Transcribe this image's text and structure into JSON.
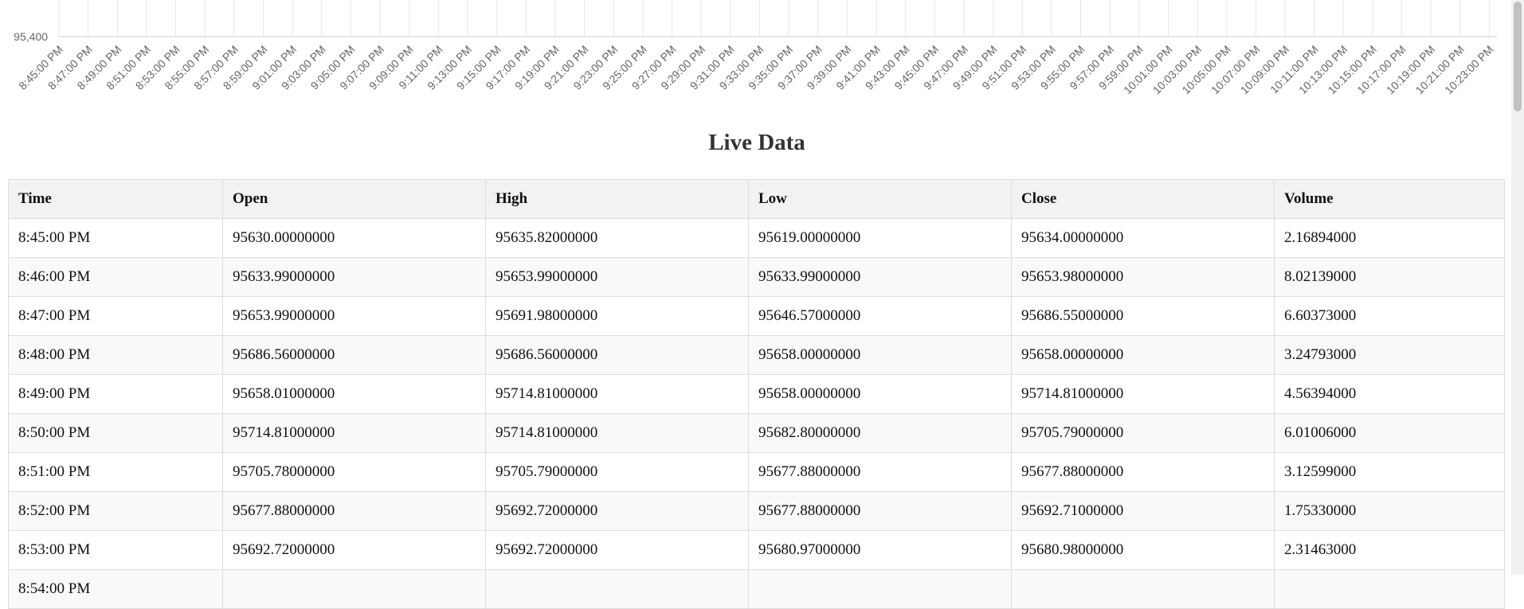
{
  "chart_data": {
    "type": "line",
    "y_tick_visible": "95,400",
    "x_tick_labels": [
      "8:45:00 PM",
      "8:47:00 PM",
      "8:49:00 PM",
      "8:51:00 PM",
      "8:53:00 PM",
      "8:55:00 PM",
      "8:57:00 PM",
      "8:59:00 PM",
      "9:01:00 PM",
      "9:03:00 PM",
      "9:05:00 PM",
      "9:07:00 PM",
      "9:09:00 PM",
      "9:11:00 PM",
      "9:13:00 PM",
      "9:15:00 PM",
      "9:17:00 PM",
      "9:19:00 PM",
      "9:21:00 PM",
      "9:23:00 PM",
      "9:25:00 PM",
      "9:27:00 PM",
      "9:29:00 PM",
      "9:31:00 PM",
      "9:33:00 PM",
      "9:35:00 PM",
      "9:37:00 PM",
      "9:39:00 PM",
      "9:41:00 PM",
      "9:43:00 PM",
      "9:45:00 PM",
      "9:47:00 PM",
      "9:49:00 PM",
      "9:51:00 PM",
      "9:53:00 PM",
      "9:55:00 PM",
      "9:57:00 PM",
      "9:59:00 PM",
      "10:01:00 PM",
      "10:03:00 PM",
      "10:05:00 PM",
      "10:07:00 PM",
      "10:09:00 PM",
      "10:11:00 PM",
      "10:13:00 PM",
      "10:15:00 PM",
      "10:17:00 PM",
      "10:19:00 PM",
      "10:21:00 PM",
      "10:23:00 PM"
    ],
    "grid": true,
    "colors": {
      "grid": "#e6e6e6",
      "axis": "#cccccc",
      "tick_text": "#666666"
    }
  },
  "section_title": "Live Data",
  "table": {
    "columns": [
      "Time",
      "Open",
      "High",
      "Low",
      "Close",
      "Volume"
    ],
    "rows": [
      [
        "8:45:00 PM",
        "95630.00000000",
        "95635.82000000",
        "95619.00000000",
        "95634.00000000",
        "2.16894000"
      ],
      [
        "8:46:00 PM",
        "95633.99000000",
        "95653.99000000",
        "95633.99000000",
        "95653.98000000",
        "8.02139000"
      ],
      [
        "8:47:00 PM",
        "95653.99000000",
        "95691.98000000",
        "95646.57000000",
        "95686.55000000",
        "6.60373000"
      ],
      [
        "8:48:00 PM",
        "95686.56000000",
        "95686.56000000",
        "95658.00000000",
        "95658.00000000",
        "3.24793000"
      ],
      [
        "8:49:00 PM",
        "95658.01000000",
        "95714.81000000",
        "95658.00000000",
        "95714.81000000",
        "4.56394000"
      ],
      [
        "8:50:00 PM",
        "95714.81000000",
        "95714.81000000",
        "95682.80000000",
        "95705.79000000",
        "6.01006000"
      ],
      [
        "8:51:00 PM",
        "95705.78000000",
        "95705.79000000",
        "95677.88000000",
        "95677.88000000",
        "3.12599000"
      ],
      [
        "8:52:00 PM",
        "95677.88000000",
        "95692.72000000",
        "95677.88000000",
        "95692.71000000",
        "1.75330000"
      ],
      [
        "8:53:00 PM",
        "95692.72000000",
        "95692.72000000",
        "95680.97000000",
        "95680.98000000",
        "2.31463000"
      ],
      [
        "8:54:00 PM",
        "",
        "",
        "",
        "",
        ""
      ]
    ]
  }
}
